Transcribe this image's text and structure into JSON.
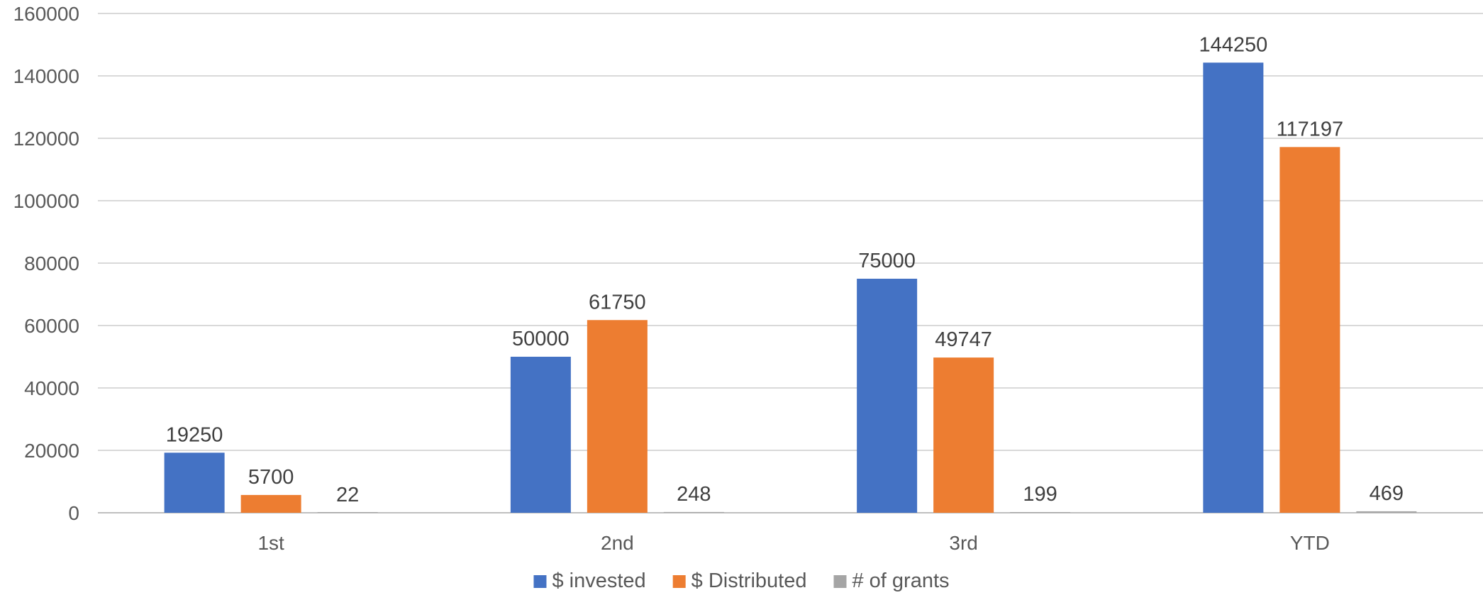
{
  "chart_data": {
    "type": "bar",
    "title": "",
    "xlabel": "",
    "ylabel": "",
    "categories": [
      "1st",
      "2nd",
      "3rd",
      "YTD"
    ],
    "series": [
      {
        "name": "$ invested",
        "color": "#4472C4",
        "values": [
          19250,
          50000,
          75000,
          144250
        ]
      },
      {
        "name": "$ Distributed",
        "color": "#ED7D31",
        "values": [
          5700,
          61750,
          49747,
          117197
        ]
      },
      {
        "name": "# of grants",
        "color": "#A5A5A5",
        "values": [
          22,
          248,
          199,
          469
        ]
      }
    ],
    "ylim": [
      0,
      160000
    ],
    "yticks": [
      0,
      20000,
      40000,
      60000,
      80000,
      100000,
      120000,
      140000,
      160000
    ],
    "grid": true,
    "legend": "bottom-center",
    "data_labels": true
  }
}
